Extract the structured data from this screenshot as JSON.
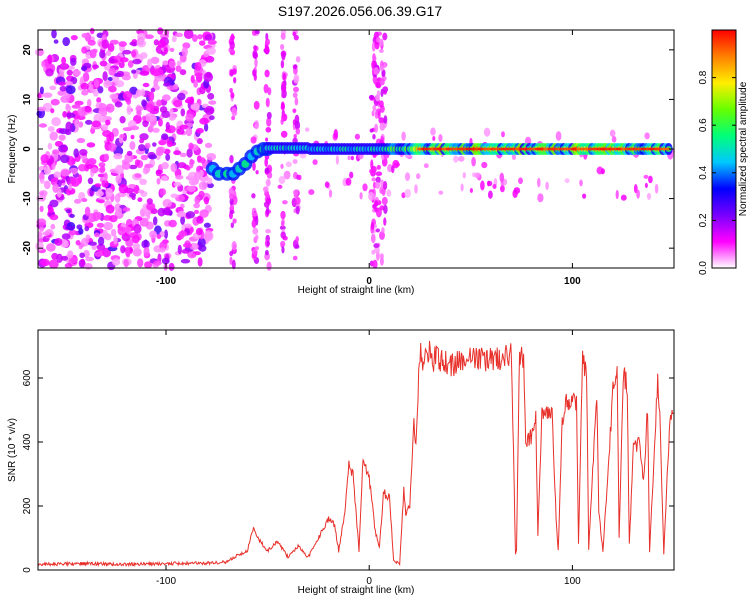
{
  "figure_title": "S197.2026.056.06.39.G17",
  "chart_data": [
    {
      "type": "heatmap",
      "xlabel": "Height of straight line (km)",
      "ylabel": "Frequency (Hz)",
      "xlim": [
        -163,
        150
      ],
      "ylim": [
        -24,
        24
      ],
      "xticks": [
        -100,
        0,
        100
      ],
      "yticks": [
        -20,
        -10,
        0,
        10,
        20
      ],
      "colorbar": {
        "label": "Normalized spectral amplitude",
        "range": [
          0,
          1
        ],
        "ticks": [
          0.0,
          0.2,
          0.4,
          0.6,
          0.8
        ],
        "colormap": [
          "#ffffff",
          "#ff00ff",
          "#7800ff",
          "#0000ff",
          "#00c8ff",
          "#00ff78",
          "#66ff00",
          "#ffee00",
          "#ff8000",
          "#ff0000"
        ]
      },
      "regions": [
        {
          "x_range": [
            -163,
            -77
          ],
          "description_level": 0.15,
          "freq_spread": "full band noise"
        },
        {
          "x_range": [
            -77,
            -50
          ],
          "freq_track_hz": [
            [
              -77,
              -4
            ],
            [
              -72,
              -5
            ],
            [
              -66,
              -5
            ],
            [
              -60,
              -3
            ],
            [
              -55,
              -1
            ],
            [
              -50,
              0
            ]
          ]
        },
        {
          "x_range": [
            -50,
            150
          ],
          "freq_track_hz": [
            [
              -50,
              0
            ],
            [
              -40,
              0
            ],
            [
              -30,
              0.5
            ],
            [
              0,
              0
            ],
            [
              150,
              0
            ]
          ]
        }
      ],
      "peak_amplitude": 1.0
    },
    {
      "type": "line",
      "xlabel": "Height of straight line (km)",
      "ylabel": "SNR (10 * v/v)",
      "xlim": [
        -163,
        150
      ],
      "ylim": [
        0,
        750
      ],
      "xticks": [
        -100,
        0,
        100
      ],
      "yticks": [
        0,
        200,
        400,
        600
      ],
      "color": "#e8302a",
      "x": [
        -163,
        -140,
        -120,
        -100,
        -80,
        -70,
        -65,
        -60,
        -57,
        -55,
        -50,
        -45,
        -40,
        -35,
        -30,
        -25,
        -20,
        -17,
        -15,
        -12,
        -10,
        -8,
        -5,
        -3,
        0,
        3,
        5,
        7,
        10,
        12,
        15,
        17,
        18,
        20,
        22,
        23,
        25,
        26,
        28,
        30,
        30.5,
        32,
        33,
        36,
        40,
        50,
        60,
        70,
        72,
        72.5,
        74,
        75,
        76,
        77,
        80,
        82,
        83,
        85,
        90,
        92,
        93,
        95,
        97,
        100,
        102,
        103,
        105,
        107,
        108,
        112,
        113,
        115,
        120,
        122,
        123,
        125,
        127,
        128,
        130,
        133,
        135,
        137,
        138,
        142,
        143,
        145,
        148,
        150
      ],
      "y": [
        18,
        20,
        18,
        20,
        22,
        25,
        45,
        60,
        130,
        100,
        60,
        90,
        40,
        75,
        40,
        100,
        160,
        140,
        60,
        180,
        330,
        300,
        60,
        350,
        290,
        120,
        70,
        240,
        230,
        30,
        20,
        250,
        180,
        200,
        450,
        400,
        690,
        660,
        680,
        700,
        640,
        660,
        670,
        650,
        640,
        660,
        660,
        670,
        50,
        60,
        680,
        660,
        650,
        400,
        420,
        470,
        110,
        500,
        480,
        160,
        60,
        460,
        520,
        540,
        520,
        80,
        660,
        620,
        60,
        560,
        180,
        60,
        560,
        640,
        100,
        620,
        580,
        80,
        380,
        400,
        280,
        500,
        60,
        600,
        500,
        50,
        480,
        490
      ]
    }
  ]
}
